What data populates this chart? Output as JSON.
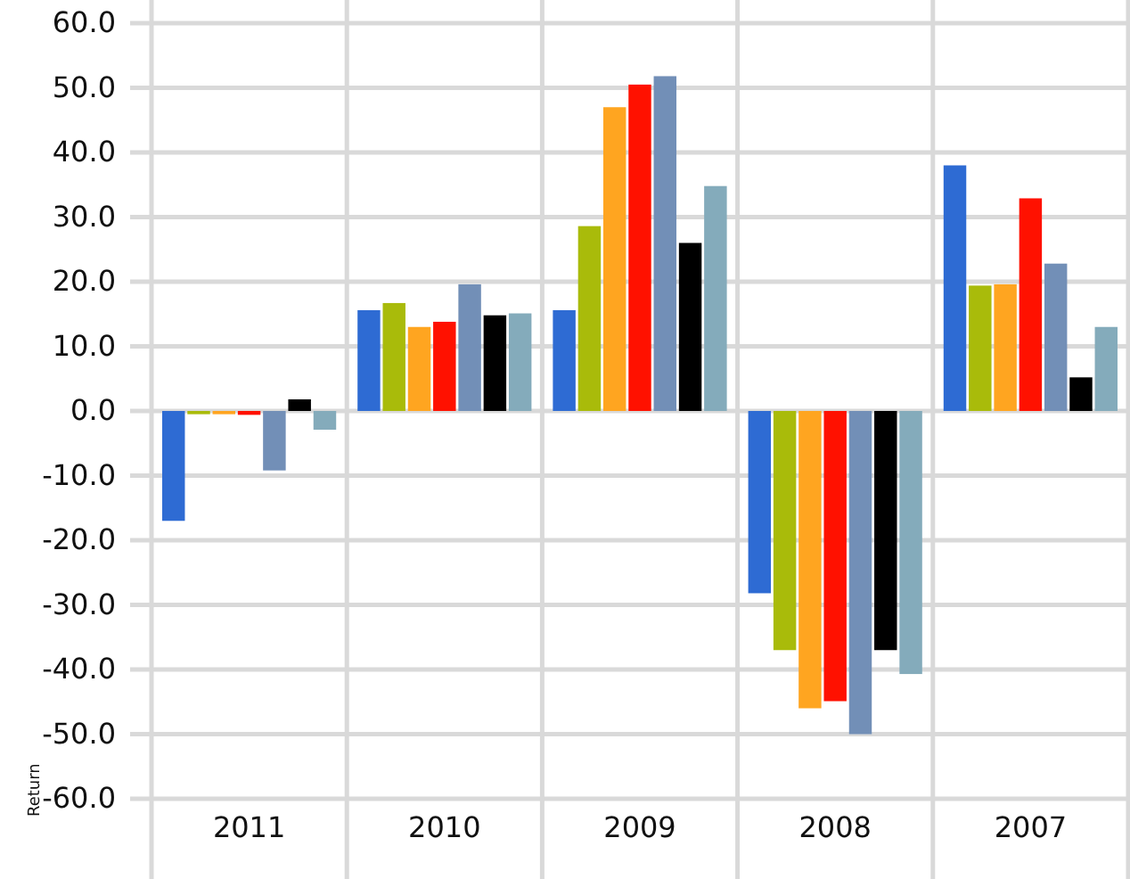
{
  "chart_data": {
    "type": "bar",
    "ylabel": "Return",
    "categories": [
      "2011",
      "2010",
      "2009",
      "2008",
      "2007"
    ],
    "series": [
      {
        "color": "#2e6bd3",
        "values": [
          -17.0,
          15.6,
          15.6,
          -28.2,
          38.0
        ]
      },
      {
        "color": "#a9bb0a",
        "values": [
          -0.5,
          16.7,
          28.6,
          -37.0,
          19.4
        ]
      },
      {
        "color": "#ffa520",
        "values": [
          -0.5,
          13.0,
          47.0,
          -46.0,
          19.6
        ]
      },
      {
        "color": "#ff1100",
        "values": [
          -0.6,
          13.8,
          50.5,
          -44.9,
          32.9
        ]
      },
      {
        "color": "#728fb7",
        "values": [
          -9.2,
          19.6,
          51.8,
          -50.0,
          22.8
        ]
      },
      {
        "color": "#000000",
        "values": [
          1.8,
          14.8,
          26.0,
          -37.0,
          5.2
        ]
      },
      {
        "color": "#84abbb",
        "values": [
          -2.9,
          15.1,
          34.8,
          -40.7,
          13.0
        ]
      }
    ],
    "ylim": [
      -60,
      60
    ],
    "yticks": [
      {
        "value": -60,
        "label": "-60.0"
      },
      {
        "value": -50,
        "label": "-50.0"
      },
      {
        "value": -40,
        "label": "-40.0"
      },
      {
        "value": -30,
        "label": "-30.0"
      },
      {
        "value": -20,
        "label": "-20.0"
      },
      {
        "value": -10,
        "label": "-10.0"
      },
      {
        "value": 0,
        "label": "0.0"
      },
      {
        "value": 10,
        "label": "10.0"
      },
      {
        "value": 20,
        "label": "20.0"
      },
      {
        "value": 30,
        "label": "30.0"
      },
      {
        "value": 40,
        "label": "40.0"
      },
      {
        "value": 50,
        "label": "50.0"
      },
      {
        "value": 60,
        "label": "60.0"
      }
    ],
    "grid": true
  }
}
